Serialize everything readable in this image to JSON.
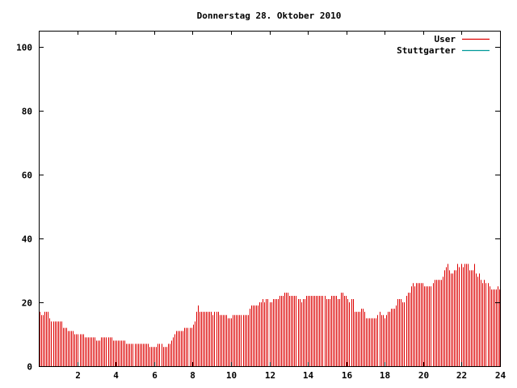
{
  "colors": {
    "user": "#dd0000",
    "stuttgarter": "#009999",
    "frame": "#000000",
    "background": "#ffffff"
  },
  "chart_data": {
    "type": "bar",
    "title": "Donnerstag 28. Oktober 2010",
    "xlabel": "",
    "ylabel": "",
    "xlim": [
      0,
      24
    ],
    "ylim": [
      0,
      105
    ],
    "x_ticks": [
      2,
      4,
      6,
      8,
      10,
      12,
      14,
      16,
      18,
      20,
      22,
      24
    ],
    "y_ticks": [
      0,
      20,
      40,
      60,
      80,
      100
    ],
    "legend_position": "top-right",
    "grid": false,
    "x_step_hours": 0.0833,
    "series": [
      {
        "name": "User",
        "values": [
          17,
          16,
          16,
          17,
          17,
          17,
          15,
          14,
          14,
          14,
          14,
          14,
          14,
          14,
          12,
          12,
          12,
          11,
          11,
          11,
          11,
          10,
          10,
          10,
          10,
          10,
          10,
          9,
          9,
          9,
          9,
          9,
          9,
          9,
          8,
          8,
          8,
          9,
          9,
          9,
          9,
          9,
          9,
          9,
          8,
          8,
          8,
          8,
          8,
          8,
          8,
          8,
          7,
          7,
          7,
          7,
          7,
          7,
          7,
          7,
          7,
          7,
          7,
          7,
          7,
          7,
          6,
          6,
          6,
          6,
          6,
          7,
          7,
          7,
          6,
          6,
          6,
          7,
          7,
          8,
          9,
          10,
          11,
          11,
          11,
          11,
          11,
          12,
          12,
          12,
          12,
          12,
          13,
          14,
          17,
          19,
          17,
          17,
          17,
          17,
          17,
          17,
          17,
          17,
          16,
          17,
          17,
          17,
          16,
          16,
          16,
          16,
          16,
          15,
          15,
          15,
          16,
          16,
          16,
          16,
          16,
          16,
          16,
          16,
          16,
          16,
          18,
          19,
          19,
          19,
          19,
          19,
          20,
          20,
          21,
          20,
          21,
          21,
          20,
          20,
          21,
          21,
          21,
          21,
          22,
          22,
          22,
          23,
          23,
          23,
          22,
          22,
          22,
          22,
          22,
          21,
          21,
          20,
          21,
          21,
          22,
          22,
          22,
          22,
          22,
          22,
          22,
          22,
          22,
          22,
          22,
          22,
          21,
          21,
          21,
          22,
          22,
          22,
          22,
          21,
          21,
          23,
          23,
          22,
          22,
          21,
          20,
          21,
          21,
          17,
          17,
          17,
          17,
          18,
          18,
          17,
          15,
          15,
          15,
          15,
          15,
          15,
          15,
          16,
          17,
          16,
          16,
          15,
          16,
          17,
          17,
          18,
          18,
          18,
          19,
          21,
          21,
          21,
          20,
          20,
          22,
          23,
          23,
          25,
          26,
          25,
          26,
          26,
          26,
          26,
          26,
          25,
          25,
          25,
          25,
          25,
          26,
          27,
          27,
          27,
          27,
          27,
          28,
          30,
          31,
          32,
          30,
          29,
          29,
          30,
          30,
          32,
          31,
          32,
          31,
          32,
          32,
          32,
          30,
          30,
          30,
          32,
          29,
          28,
          29,
          27,
          26,
          27,
          26,
          26,
          25,
          24,
          24,
          24,
          24,
          25,
          24
        ]
      },
      {
        "name": "Stuttgarter",
        "values": []
      }
    ]
  }
}
